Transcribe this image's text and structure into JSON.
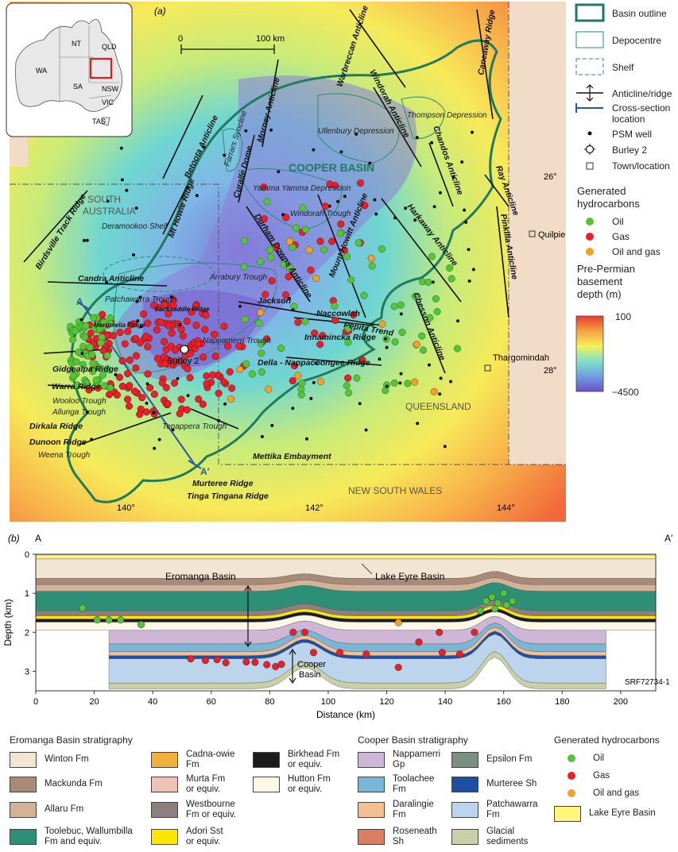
{
  "panel_a": {
    "label": "(a)",
    "scale_bar": {
      "start": "0",
      "end": "100 km"
    },
    "inset": {
      "states": [
        "NT",
        "QLD",
        "WA",
        "SA",
        "NSW",
        "VIC",
        "TAS"
      ]
    },
    "basin_title": "COOPER BASIN",
    "regions": {
      "south_australia": [
        "SOUTH",
        "AUSTRALIA"
      ],
      "queensland": "QUEENSLAND",
      "nsw": "NEW SOUTH WALES"
    },
    "towns": [
      "Quilpie",
      "Thargomindah"
    ],
    "longitudes": [
      "140°",
      "142°",
      "144°"
    ],
    "latitudes": [
      "26°",
      "28°"
    ],
    "anticlines": [
      "Warbreccan Anticline",
      "Caneaway Ridge",
      "Windorah Anticline",
      "Betoota Anticline",
      "Morney Anticline",
      "Curalle Dome",
      "Mt Howie Ridge",
      "Birdsville Track Ridge",
      "Candra Anticline",
      "Chandos Anticline",
      "Ray Anticline",
      "Pinkilla Anticline",
      "Harkaway Anticline",
      "Chesson Anticline",
      "Durham Downs Anticline",
      "Mount Howitt Anticline"
    ],
    "features_italic": [
      "Thompson Depression",
      "Ullenbury Depression",
      "Farrars Syncline",
      "Yamma Yamma Depression",
      "Windorah Trough",
      "Deramookoo Shelf",
      "Arrabury Trough",
      "Patchawarra Trough",
      "Nappamerri Trough",
      "Wooloo Trough",
      "Allunga Trough",
      "Tenappera Trough",
      "Weena Trough"
    ],
    "features_bold": [
      "Jackson",
      "Naccowlah",
      "Pepita Trend",
      "Innamincka Ridge",
      "Della - Nappacoongee Ridge",
      "Gidgealpa Ridge",
      "Warra Ridge",
      "Dirkala Ridge",
      "Dunoon Ridge",
      "Mettika Embayment",
      "Murteree Ridge",
      "Tinga Tingana Ridge",
      "Merrimelia Ridge",
      "Packsaddle Ridge"
    ],
    "burley_label": "Burley 2",
    "section_ends": [
      "A",
      "A′"
    ],
    "legend": {
      "basin_outline": "Basin outline",
      "depocentre": "Depocentre",
      "shelf": "Shelf",
      "anticline": "Anticline/ridge",
      "cross_section": [
        "Cross-section",
        "location"
      ],
      "psm_well": "PSM well",
      "burley": "Burley 2",
      "town": "Town/location",
      "generated_title": [
        "Generated",
        "hydrocarbons"
      ],
      "oil": "Oil",
      "gas": "Gas",
      "oil_and_gas": "Oil and gas",
      "depth_title": [
        "Pre-Permian",
        "basement",
        "depth (m)"
      ],
      "depth_max": "100",
      "depth_min": "−4500"
    }
  },
  "panel_b": {
    "label": "(b)",
    "end_a": "A",
    "end_a_prime": "A′",
    "x_axis": {
      "label": "Distance (km)",
      "ticks": [
        "0",
        "20",
        "40",
        "60",
        "80",
        "100",
        "120",
        "140",
        "160",
        "180",
        "200"
      ]
    },
    "y_axis": {
      "label": "Depth (km)",
      "ticks": [
        "0",
        "1",
        "2",
        "3"
      ]
    },
    "annotations": {
      "eromanga": "Eromanga Basin",
      "lake_eyre": "Lake Eyre Basin",
      "cooper": [
        "Cooper",
        "Basin"
      ]
    },
    "code": "SRF72734-1"
  },
  "strat_legend": {
    "eromanga_title": "Eromanga Basin stratigraphy",
    "cooper_title": "Cooper Basin stratigraphy",
    "hydro_title": "Generated hydrocarbons",
    "eromanga_items": [
      {
        "name": [
          "Winton Fm"
        ],
        "color": "#f2e6d3"
      },
      {
        "name": [
          "Mackunda Fm"
        ],
        "color": "#a98a78"
      },
      {
        "name": [
          "Allaru Fm"
        ],
        "color": "#d4b29a"
      },
      {
        "name": [
          "Toolebuc, Wallumbilla",
          "Fm and equiv."
        ],
        "color": "#2e8f77"
      },
      {
        "name": [
          "Cadna-owie",
          "Fm"
        ],
        "color": "#f2b13b"
      },
      {
        "name": [
          "Murta Fm",
          "or equiv."
        ],
        "color": "#f0c2b6"
      },
      {
        "name": [
          "Westbourne",
          "Fm or equiv."
        ],
        "color": "#8c7f7d"
      },
      {
        "name": [
          "Adori Sst",
          "or equiv."
        ],
        "color": "#ffe600"
      },
      {
        "name": [
          "Birkhead Fm",
          "or equiv."
        ],
        "color": "#1b1b1b"
      },
      {
        "name": [
          "Hutton Fm",
          "or equiv."
        ],
        "color": "#fdf7e8"
      }
    ],
    "cooper_items": [
      {
        "name": [
          "Nappamerri",
          "Gp"
        ],
        "color": "#cdb6d6"
      },
      {
        "name": [
          "Toolachee",
          "Fm"
        ],
        "color": "#7ab6d6"
      },
      {
        "name": [
          "Daralingie",
          "Fm"
        ],
        "color": "#f4bf92"
      },
      {
        "name": [
          "Roseneath",
          "Sh"
        ],
        "color": "#d77f63"
      },
      {
        "name": [
          "Epsilon Fm"
        ],
        "color": "#7b8f83"
      },
      {
        "name": [
          "Murteree Sh"
        ],
        "color": "#1f4fa3"
      },
      {
        "name": [
          "Patchawarra",
          "Fm"
        ],
        "color": "#bcd4ec"
      },
      {
        "name": [
          "Glacial",
          "sediments"
        ],
        "color": "#c7d0a8"
      }
    ],
    "hydro_items": [
      {
        "name": "Oil",
        "color": "#55c43a"
      },
      {
        "name": "Gas",
        "color": "#e8202a"
      },
      {
        "name": "Oil and gas",
        "color": "#f0a22a"
      }
    ],
    "lake_eyre": {
      "name": "Lake Eyre Basin",
      "color": "#fff57a"
    }
  },
  "colors": {
    "basin_outline": "#1f7a5f",
    "oil": "#55c43a",
    "gas": "#e8202a",
    "oil_gas": "#f0a22a",
    "section_line": "#2a57a6"
  }
}
